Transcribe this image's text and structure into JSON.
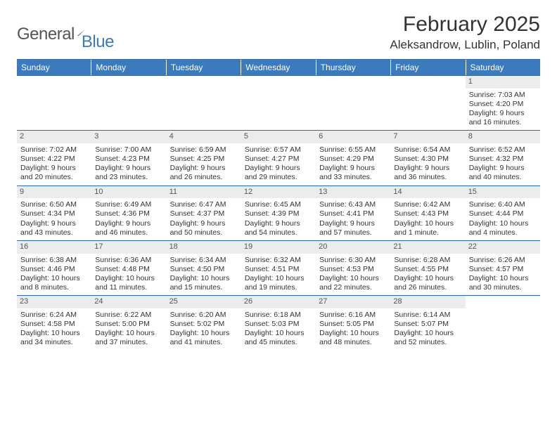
{
  "logo": {
    "word1": "General",
    "word2": "Blue"
  },
  "title": "February 2025",
  "location": "Aleksandrow, Lublin, Poland",
  "day_headers": [
    "Sunday",
    "Monday",
    "Tuesday",
    "Wednesday",
    "Thursday",
    "Friday",
    "Saturday"
  ],
  "colors": {
    "brand_blue": "#3a7abd",
    "rule_blue": "#2d6db3",
    "strip_grey": "#ececec",
    "text": "#333333"
  },
  "weeks": [
    [
      null,
      null,
      null,
      null,
      null,
      null,
      {
        "n": "1",
        "sr": "Sunrise: 7:03 AM",
        "ss": "Sunset: 4:20 PM",
        "dl": "Daylight: 9 hours and 16 minutes."
      }
    ],
    [
      {
        "n": "2",
        "sr": "Sunrise: 7:02 AM",
        "ss": "Sunset: 4:22 PM",
        "dl": "Daylight: 9 hours and 20 minutes."
      },
      {
        "n": "3",
        "sr": "Sunrise: 7:00 AM",
        "ss": "Sunset: 4:23 PM",
        "dl": "Daylight: 9 hours and 23 minutes."
      },
      {
        "n": "4",
        "sr": "Sunrise: 6:59 AM",
        "ss": "Sunset: 4:25 PM",
        "dl": "Daylight: 9 hours and 26 minutes."
      },
      {
        "n": "5",
        "sr": "Sunrise: 6:57 AM",
        "ss": "Sunset: 4:27 PM",
        "dl": "Daylight: 9 hours and 29 minutes."
      },
      {
        "n": "6",
        "sr": "Sunrise: 6:55 AM",
        "ss": "Sunset: 4:29 PM",
        "dl": "Daylight: 9 hours and 33 minutes."
      },
      {
        "n": "7",
        "sr": "Sunrise: 6:54 AM",
        "ss": "Sunset: 4:30 PM",
        "dl": "Daylight: 9 hours and 36 minutes."
      },
      {
        "n": "8",
        "sr": "Sunrise: 6:52 AM",
        "ss": "Sunset: 4:32 PM",
        "dl": "Daylight: 9 hours and 40 minutes."
      }
    ],
    [
      {
        "n": "9",
        "sr": "Sunrise: 6:50 AM",
        "ss": "Sunset: 4:34 PM",
        "dl": "Daylight: 9 hours and 43 minutes."
      },
      {
        "n": "10",
        "sr": "Sunrise: 6:49 AM",
        "ss": "Sunset: 4:36 PM",
        "dl": "Daylight: 9 hours and 46 minutes."
      },
      {
        "n": "11",
        "sr": "Sunrise: 6:47 AM",
        "ss": "Sunset: 4:37 PM",
        "dl": "Daylight: 9 hours and 50 minutes."
      },
      {
        "n": "12",
        "sr": "Sunrise: 6:45 AM",
        "ss": "Sunset: 4:39 PM",
        "dl": "Daylight: 9 hours and 54 minutes."
      },
      {
        "n": "13",
        "sr": "Sunrise: 6:43 AM",
        "ss": "Sunset: 4:41 PM",
        "dl": "Daylight: 9 hours and 57 minutes."
      },
      {
        "n": "14",
        "sr": "Sunrise: 6:42 AM",
        "ss": "Sunset: 4:43 PM",
        "dl": "Daylight: 10 hours and 1 minute."
      },
      {
        "n": "15",
        "sr": "Sunrise: 6:40 AM",
        "ss": "Sunset: 4:44 PM",
        "dl": "Daylight: 10 hours and 4 minutes."
      }
    ],
    [
      {
        "n": "16",
        "sr": "Sunrise: 6:38 AM",
        "ss": "Sunset: 4:46 PM",
        "dl": "Daylight: 10 hours and 8 minutes."
      },
      {
        "n": "17",
        "sr": "Sunrise: 6:36 AM",
        "ss": "Sunset: 4:48 PM",
        "dl": "Daylight: 10 hours and 11 minutes."
      },
      {
        "n": "18",
        "sr": "Sunrise: 6:34 AM",
        "ss": "Sunset: 4:50 PM",
        "dl": "Daylight: 10 hours and 15 minutes."
      },
      {
        "n": "19",
        "sr": "Sunrise: 6:32 AM",
        "ss": "Sunset: 4:51 PM",
        "dl": "Daylight: 10 hours and 19 minutes."
      },
      {
        "n": "20",
        "sr": "Sunrise: 6:30 AM",
        "ss": "Sunset: 4:53 PM",
        "dl": "Daylight: 10 hours and 22 minutes."
      },
      {
        "n": "21",
        "sr": "Sunrise: 6:28 AM",
        "ss": "Sunset: 4:55 PM",
        "dl": "Daylight: 10 hours and 26 minutes."
      },
      {
        "n": "22",
        "sr": "Sunrise: 6:26 AM",
        "ss": "Sunset: 4:57 PM",
        "dl": "Daylight: 10 hours and 30 minutes."
      }
    ],
    [
      {
        "n": "23",
        "sr": "Sunrise: 6:24 AM",
        "ss": "Sunset: 4:58 PM",
        "dl": "Daylight: 10 hours and 34 minutes."
      },
      {
        "n": "24",
        "sr": "Sunrise: 6:22 AM",
        "ss": "Sunset: 5:00 PM",
        "dl": "Daylight: 10 hours and 37 minutes."
      },
      {
        "n": "25",
        "sr": "Sunrise: 6:20 AM",
        "ss": "Sunset: 5:02 PM",
        "dl": "Daylight: 10 hours and 41 minutes."
      },
      {
        "n": "26",
        "sr": "Sunrise: 6:18 AM",
        "ss": "Sunset: 5:03 PM",
        "dl": "Daylight: 10 hours and 45 minutes."
      },
      {
        "n": "27",
        "sr": "Sunrise: 6:16 AM",
        "ss": "Sunset: 5:05 PM",
        "dl": "Daylight: 10 hours and 48 minutes."
      },
      {
        "n": "28",
        "sr": "Sunrise: 6:14 AM",
        "ss": "Sunset: 5:07 PM",
        "dl": "Daylight: 10 hours and 52 minutes."
      },
      null
    ]
  ]
}
